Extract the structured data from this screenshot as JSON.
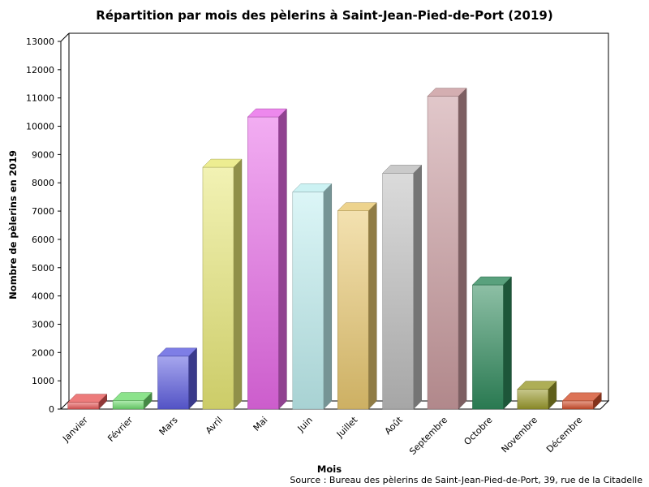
{
  "chart_data": {
    "type": "bar",
    "title": "Répartition par mois des pèlerins à Saint-Jean-Pied-de-Port (2019)",
    "xlabel": "Mois",
    "ylabel": "Nombre de pèlerins en 2019",
    "source": "Source : Bureau des pèlerins de Saint-Jean-Pied-de-Port, 39, rue de la Citadelle",
    "categories": [
      "Janvier",
      "Février",
      "Mars",
      "Avril",
      "Mai",
      "Juin",
      "Juillet",
      "Août",
      "Septembre",
      "Octobre",
      "Novembre",
      "Décembre"
    ],
    "values": [
      240,
      300,
      1870,
      8550,
      10330,
      7680,
      7010,
      8340,
      11060,
      4390,
      700,
      290
    ],
    "colors": [
      "#e85a5a",
      "#6fdc6f",
      "#5e5ee0",
      "#e8e876",
      "#e86ae8",
      "#bfeff0",
      "#e9c870",
      "#bdbdbd",
      "#c99a9e",
      "#2f8a5c",
      "#9a9a2c",
      "#d3502c"
    ],
    "ylim": [
      0,
      13000
    ],
    "yticks": [
      0,
      1000,
      2000,
      3000,
      4000,
      5000,
      6000,
      7000,
      8000,
      9000,
      10000,
      11000,
      12000,
      13000
    ],
    "grid": false,
    "legend": "none"
  }
}
